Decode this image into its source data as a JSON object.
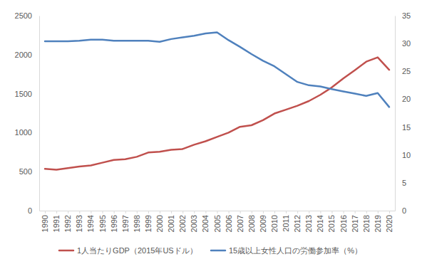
{
  "chart_data": {
    "type": "line",
    "categories": [
      "1990",
      "1991",
      "1992",
      "1993",
      "1994",
      "1995",
      "1996",
      "1997",
      "1998",
      "1999",
      "2000",
      "2001",
      "2002",
      "2003",
      "2004",
      "2005",
      "2006",
      "2007",
      "2008",
      "2009",
      "2010",
      "2011",
      "2012",
      "2013",
      "2014",
      "2015",
      "2016",
      "2017",
      "2018",
      "2019",
      "2020"
    ],
    "series": [
      {
        "name": "1人当たりGDP（2015年USドル）",
        "color": "#c0504d",
        "axis": "y",
        "values": [
          535,
          525,
          545,
          565,
          580,
          615,
          650,
          660,
          690,
          745,
          755,
          780,
          790,
          845,
          890,
          945,
          1000,
          1075,
          1095,
          1160,
          1245,
          1295,
          1345,
          1405,
          1485,
          1580,
          1695,
          1800,
          1910,
          1965,
          1805
        ]
      },
      {
        "name": "15歳以上女性人口の労働参加率（%）",
        "color": "#4f81bd",
        "axis": "y2",
        "values": [
          30.4,
          30.4,
          30.4,
          30.5,
          30.7,
          30.7,
          30.5,
          30.5,
          30.5,
          30.5,
          30.3,
          30.8,
          31.1,
          31.4,
          31.8,
          32.0,
          30.6,
          29.4,
          28.1,
          26.9,
          25.9,
          24.5,
          23.1,
          22.5,
          22.3,
          21.8,
          21.4,
          21.0,
          20.6,
          21.1,
          18.6
        ]
      }
    ],
    "ylim": [
      0,
      2500
    ],
    "yticks": [
      0,
      500,
      1000,
      1500,
      2000,
      2500
    ],
    "y2lim": [
      0,
      35
    ],
    "y2ticks": [
      0,
      5,
      10,
      15,
      20,
      25,
      30,
      35
    ],
    "grid": false,
    "legend": "bottom"
  }
}
